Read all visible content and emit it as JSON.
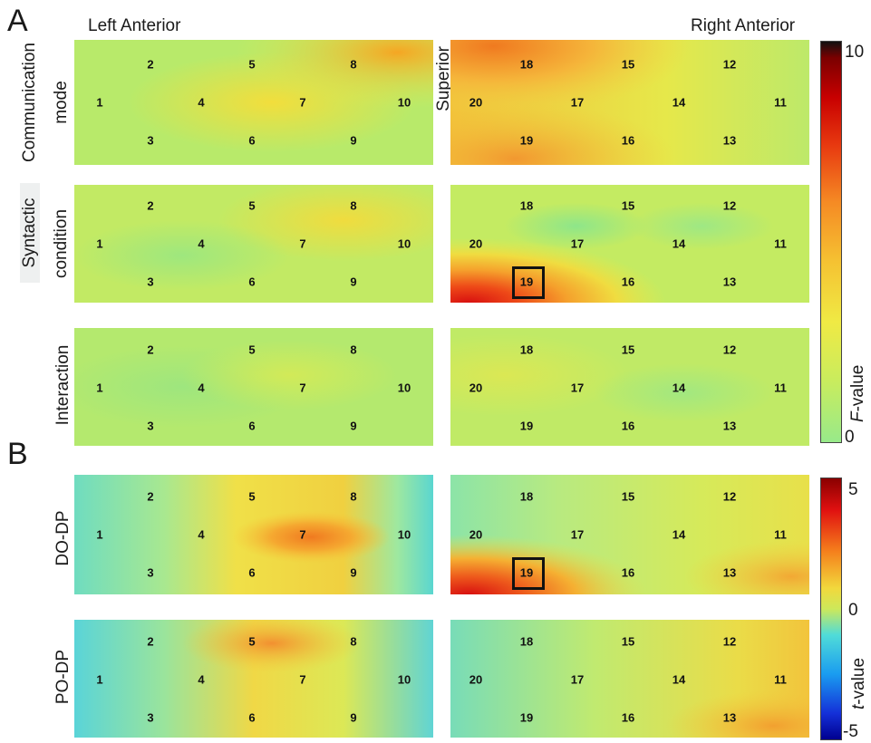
{
  "panels": {
    "A": {
      "letter": "A",
      "header_left": "Left Anterior",
      "header_right": "Right Anterior",
      "superior_label": "Superior",
      "rows": [
        {
          "label_line1": "Communication",
          "label_line2": "mode"
        },
        {
          "label_line1": "Syntactic",
          "label_line2": "condition"
        },
        {
          "label_line1": "",
          "label_line2": "Interaction"
        }
      ],
      "colorbar": {
        "max": "10",
        "min": "0",
        "label_italic": "F",
        "label_rest": "-value"
      }
    },
    "B": {
      "letter": "B",
      "rows": [
        {
          "label": "DO-DP"
        },
        {
          "label": "PO-DP"
        }
      ],
      "colorbar": {
        "max": "5",
        "mid": "0",
        "min": "-5",
        "label_italic": "t",
        "label_rest": "-value"
      }
    }
  },
  "channels": {
    "left": [
      "1",
      "2",
      "3",
      "4",
      "5",
      "6",
      "7",
      "8",
      "9",
      "10"
    ],
    "right": [
      "11",
      "12",
      "13",
      "14",
      "15",
      "16",
      "17",
      "18",
      "19",
      "20"
    ]
  },
  "highlighted_channel": "19"
}
